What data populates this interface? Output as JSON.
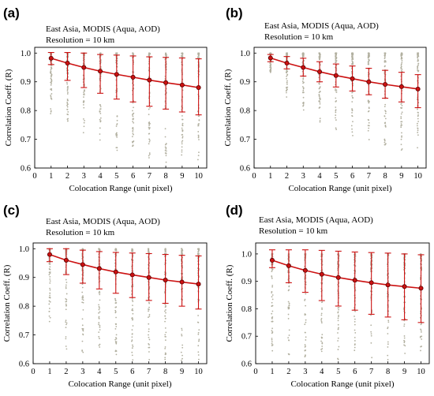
{
  "chart_data": [
    {
      "type": "scatter",
      "panel_label": "(a)",
      "annotation_lines": [
        "East Asia, MODIS (Aqua, AOD)",
        "Resolution = 10 km"
      ],
      "xlabel": "Colocation Range (unit pixel)",
      "ylabel": "Correlation Coeff. (R)",
      "xlim": [
        0,
        10.5
      ],
      "ylim": [
        0.6,
        1.02
      ],
      "xticks": [
        0,
        1,
        2,
        3,
        4,
        5,
        6,
        7,
        8,
        9,
        10
      ],
      "yticks": [
        0.6,
        0.7,
        0.8,
        0.9,
        1.0
      ],
      "ytick_labels": [
        "0.6",
        "0.7",
        "0.8",
        "0.9",
        "1.0"
      ],
      "scatter_column_min": [
        0.78,
        0.74,
        0.72,
        0.68,
        0.66,
        0.65,
        0.63,
        0.62,
        0.62,
        0.61
      ],
      "series": [
        {
          "style": "mean-with-std",
          "color": "#cc1111",
          "x": [
            1,
            2,
            3,
            4,
            5,
            6,
            7,
            8,
            9,
            10
          ],
          "mean": [
            0.982,
            0.965,
            0.95,
            0.937,
            0.926,
            0.916,
            0.906,
            0.897,
            0.889,
            0.88
          ],
          "lower": [
            0.96,
            0.905,
            0.88,
            0.86,
            0.84,
            0.83,
            0.815,
            0.805,
            0.795,
            0.785
          ],
          "upper": [
            1.002,
            1.002,
            1.0,
            0.995,
            0.993,
            0.99,
            0.987,
            0.985,
            0.983,
            0.98
          ]
        }
      ]
    },
    {
      "type": "scatter",
      "panel_label": "(b)",
      "annotation_lines": [
        "East Asia, MODIS (Aqua, AOD)",
        "Resolution = 10 km"
      ],
      "xlabel": "Colocation Range (unit pixel)",
      "ylabel": "Correlation Coeff. (R)",
      "xlim": [
        0,
        10.5
      ],
      "ylim": [
        0.6,
        1.02
      ],
      "xticks": [
        0,
        1,
        2,
        3,
        4,
        5,
        6,
        7,
        8,
        9,
        10
      ],
      "yticks": [
        0.6,
        0.7,
        0.8,
        0.9,
        1.0
      ],
      "ytick_labels": [
        "0.6",
        "0.7",
        "0.8",
        "0.9",
        "1.0"
      ],
      "scatter_column_min": [
        0.93,
        0.84,
        0.8,
        0.76,
        0.73,
        0.71,
        0.69,
        0.67,
        0.66,
        0.65
      ],
      "series": [
        {
          "style": "mean-with-std",
          "color": "#cc1111",
          "x": [
            1,
            2,
            3,
            4,
            5,
            6,
            7,
            8,
            9,
            10
          ],
          "mean": [
            0.983,
            0.965,
            0.95,
            0.935,
            0.922,
            0.911,
            0.9,
            0.891,
            0.883,
            0.875
          ],
          "lower": [
            0.97,
            0.945,
            0.92,
            0.9,
            0.882,
            0.868,
            0.855,
            0.843,
            0.83,
            0.81
          ],
          "upper": [
            0.995,
            0.988,
            0.982,
            0.97,
            0.962,
            0.955,
            0.947,
            0.94,
            0.933,
            0.925
          ]
        }
      ]
    },
    {
      "type": "scatter",
      "panel_label": "(c)",
      "annotation_lines": [
        "East Asia, MODIS (Aqua, AOD)",
        "Resolution = 10 km"
      ],
      "xlabel": "Colocation Range (unit pixel)",
      "ylabel": "Correlation Coeff. (R)",
      "xlim": [
        0,
        10.5
      ],
      "ylim": [
        0.6,
        1.02
      ],
      "xticks": [
        0,
        1,
        2,
        3,
        4,
        5,
        6,
        7,
        8,
        9,
        10
      ],
      "yticks": [
        0.6,
        0.7,
        0.8,
        0.9,
        1.0
      ],
      "ytick_labels": [
        "0.6",
        "0.7",
        "0.8",
        "0.9",
        "1.0"
      ],
      "scatter_column_min": [
        0.73,
        0.65,
        0.63,
        0.62,
        0.62,
        0.61,
        0.61,
        0.61,
        0.61,
        0.61
      ],
      "series": [
        {
          "style": "mean-with-std",
          "color": "#cc1111",
          "x": [
            1,
            2,
            3,
            4,
            5,
            6,
            7,
            8,
            9,
            10
          ],
          "mean": [
            0.98,
            0.96,
            0.945,
            0.931,
            0.919,
            0.909,
            0.9,
            0.891,
            0.884,
            0.877
          ],
          "lower": [
            0.955,
            0.91,
            0.88,
            0.86,
            0.845,
            0.83,
            0.82,
            0.81,
            0.8,
            0.79
          ],
          "upper": [
            1.0,
            1.0,
            0.995,
            0.99,
            0.987,
            0.985,
            0.983,
            0.98,
            0.977,
            0.975
          ]
        }
      ]
    },
    {
      "type": "scatter",
      "panel_label": "(d)",
      "annotation_lines": [
        "East Asia, MODIS (Aqua, AOD)",
        "Resolution = 10 km"
      ],
      "xlabel": "Colocation Range (unit pixel)",
      "ylabel": "Correlation Coeff. (R)",
      "xlim": [
        0,
        10.5
      ],
      "ylim": [
        0.6,
        1.04
      ],
      "xticks": [
        0,
        1,
        2,
        3,
        4,
        5,
        6,
        7,
        8,
        9,
        10
      ],
      "yticks": [
        0.6,
        0.7,
        0.8,
        0.9,
        1.0
      ],
      "ytick_labels": [
        "0.6",
        "0.7",
        "0.8",
        "0.9",
        "1.0"
      ],
      "scatter_column_min": [
        0.64,
        0.62,
        0.61,
        0.61,
        0.61,
        0.61,
        0.61,
        0.61,
        0.61,
        0.61
      ],
      "series": [
        {
          "style": "mean-with-std",
          "color": "#cc1111",
          "x": [
            1,
            2,
            3,
            4,
            5,
            6,
            7,
            8,
            9,
            10
          ],
          "mean": [
            0.977,
            0.957,
            0.94,
            0.926,
            0.914,
            0.904,
            0.895,
            0.887,
            0.881,
            0.875
          ],
          "lower": [
            0.95,
            0.895,
            0.86,
            0.83,
            0.81,
            0.795,
            0.78,
            0.77,
            0.76,
            0.75
          ],
          "upper": [
            1.015,
            1.015,
            1.015,
            1.013,
            1.01,
            1.007,
            1.005,
            1.003,
            1.0,
            0.997
          ]
        }
      ]
    }
  ],
  "colors": {
    "scatter": "#b2b0a0",
    "line": "#cc1111",
    "marker_fill": "#cc1111",
    "marker_edge": "#550000",
    "axis": "#000000"
  }
}
